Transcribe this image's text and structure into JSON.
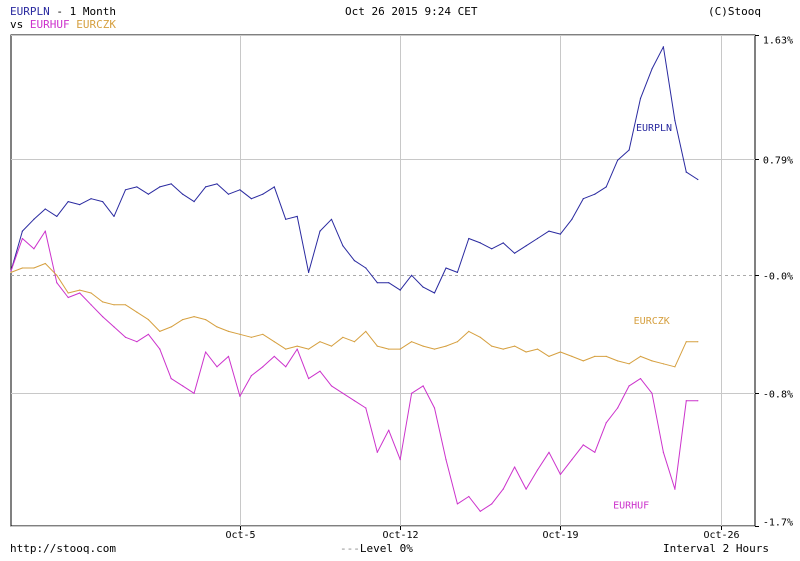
{
  "header": {
    "main_symbol": "EURPLN",
    "period": "- 1 Month",
    "vs_label": "vs",
    "compare_symbols": [
      "EURHUF",
      "EURCZK"
    ],
    "datetime": "Oct 26 2015 9:24 CET",
    "copyright": "(C)Stooq"
  },
  "footer": {
    "url": "http://stooq.com",
    "level_label": "Level 0%",
    "interval": "Interval 2 Hours"
  },
  "colors": {
    "EURPLN": "#2a2aa0",
    "EURHUF": "#cc33cc",
    "EURCZK": "#d6a040",
    "grid": "#c8c8c8",
    "zero_line": "#aaaaaa"
  },
  "chart_data": {
    "type": "line",
    "ylim": [
      -1.7,
      1.63
    ],
    "y_unit": "%",
    "y_ticks": [
      {
        "value": 1.63,
        "label": "1.63%"
      },
      {
        "value": 0.79,
        "label": "0.79%"
      },
      {
        "value": 0.0,
        "label": "-0.0%"
      },
      {
        "value": -0.8,
        "label": "-0.8%"
      },
      {
        "value": -1.7,
        "label": "-1.7%"
      }
    ],
    "x_range": [
      0,
      30
    ],
    "x_ticks": [
      {
        "value": 10.0,
        "label": "Oct-5"
      },
      {
        "value": 17.0,
        "label": "Oct-12"
      },
      {
        "value": 24.0,
        "label": "Oct-19"
      },
      {
        "value": 31.0,
        "label": "Oct-26"
      }
    ],
    "x_extent": 32.5,
    "series": [
      {
        "name": "EURPLN",
        "x": [
          0,
          0.5,
          1,
          1.5,
          2,
          2.5,
          3,
          3.5,
          4,
          4.5,
          5,
          5.5,
          6,
          6.5,
          7,
          7.5,
          8,
          8.5,
          9,
          9.5,
          10,
          10.5,
          11,
          11.5,
          12,
          12.5,
          13,
          13.5,
          14,
          14.5,
          15,
          15.5,
          16,
          16.5,
          17,
          17.5,
          18,
          18.5,
          19,
          19.5,
          20,
          20.5,
          21,
          21.5,
          22,
          22.5,
          23,
          23.5,
          24,
          24.5,
          25,
          25.5,
          26,
          26.5,
          27,
          27.5,
          28,
          28.5,
          29,
          29.5,
          30
        ],
        "values": [
          0.03,
          0.3,
          0.38,
          0.45,
          0.4,
          0.5,
          0.48,
          0.52,
          0.5,
          0.4,
          0.58,
          0.6,
          0.55,
          0.6,
          0.62,
          0.55,
          0.5,
          0.6,
          0.62,
          0.55,
          0.58,
          0.52,
          0.55,
          0.6,
          0.38,
          0.4,
          0.02,
          0.3,
          0.38,
          0.2,
          0.1,
          0.05,
          -0.05,
          -0.05,
          -0.1,
          0.0,
          -0.08,
          -0.12,
          0.05,
          0.02,
          0.25,
          0.22,
          0.18,
          0.22,
          0.15,
          0.2,
          0.25,
          0.3,
          0.28,
          0.38,
          0.52,
          0.55,
          0.6,
          0.78,
          0.85,
          1.2,
          1.4,
          1.55,
          1.05,
          0.7,
          0.65
        ],
        "label_x": 27.3,
        "label_y": 0.98
      },
      {
        "name": "EURHUF",
        "x": [
          0,
          0.5,
          1,
          1.5,
          2,
          2.5,
          3,
          3.5,
          4,
          4.5,
          5,
          5.5,
          6,
          6.5,
          7,
          7.5,
          8,
          8.5,
          9,
          9.5,
          10,
          10.5,
          11,
          11.5,
          12,
          12.5,
          13,
          13.5,
          14,
          14.5,
          15,
          15.5,
          16,
          16.5,
          17,
          17.5,
          18,
          18.5,
          19,
          19.5,
          20,
          20.5,
          21,
          21.5,
          22,
          22.5,
          23,
          23.5,
          24,
          24.5,
          25,
          25.5,
          26,
          26.5,
          27,
          27.5,
          28,
          28.5,
          29,
          29.5,
          30
        ],
        "values": [
          0.03,
          0.25,
          0.18,
          0.3,
          -0.05,
          -0.15,
          -0.12,
          -0.2,
          -0.28,
          -0.35,
          -0.42,
          -0.45,
          -0.4,
          -0.5,
          -0.7,
          -0.75,
          -0.8,
          -0.52,
          -0.62,
          -0.55,
          -0.82,
          -0.68,
          -0.62,
          -0.55,
          -0.62,
          -0.5,
          -0.7,
          -0.65,
          -0.75,
          -0.8,
          -0.85,
          -0.9,
          -1.2,
          -1.05,
          -1.25,
          -0.8,
          -0.75,
          -0.9,
          -1.25,
          -1.55,
          -1.5,
          -1.6,
          -1.55,
          -1.45,
          -1.3,
          -1.45,
          -1.32,
          -1.2,
          -1.35,
          -1.25,
          -1.15,
          -1.2,
          -1.0,
          -0.9,
          -0.75,
          -0.7,
          -0.8,
          -1.2,
          -1.45,
          -0.85,
          -0.85
        ],
        "label_x": 26.3,
        "label_y": -1.58
      },
      {
        "name": "EURCZK",
        "x": [
          0,
          0.5,
          1,
          1.5,
          2,
          2.5,
          3,
          3.5,
          4,
          4.5,
          5,
          5.5,
          6,
          6.5,
          7,
          7.5,
          8,
          8.5,
          9,
          9.5,
          10,
          10.5,
          11,
          11.5,
          12,
          12.5,
          13,
          13.5,
          14,
          14.5,
          15,
          15.5,
          16,
          16.5,
          17,
          17.5,
          18,
          18.5,
          19,
          19.5,
          20,
          20.5,
          21,
          21.5,
          22,
          22.5,
          23,
          23.5,
          24,
          24.5,
          25,
          25.5,
          26,
          26.5,
          27,
          27.5,
          28,
          28.5,
          29,
          29.5,
          30
        ],
        "values": [
          0.02,
          0.05,
          0.05,
          0.08,
          0.0,
          -0.12,
          -0.1,
          -0.12,
          -0.18,
          -0.2,
          -0.2,
          -0.25,
          -0.3,
          -0.38,
          -0.35,
          -0.3,
          -0.28,
          -0.3,
          -0.35,
          -0.38,
          -0.4,
          -0.42,
          -0.4,
          -0.45,
          -0.5,
          -0.48,
          -0.5,
          -0.45,
          -0.48,
          -0.42,
          -0.45,
          -0.38,
          -0.48,
          -0.5,
          -0.5,
          -0.45,
          -0.48,
          -0.5,
          -0.48,
          -0.45,
          -0.38,
          -0.42,
          -0.48,
          -0.5,
          -0.48,
          -0.52,
          -0.5,
          -0.55,
          -0.52,
          -0.55,
          -0.58,
          -0.55,
          -0.55,
          -0.58,
          -0.6,
          -0.55,
          -0.58,
          -0.6,
          -0.62,
          -0.45,
          -0.45
        ],
        "label_x": 27.2,
        "label_y": -0.33
      }
    ]
  }
}
